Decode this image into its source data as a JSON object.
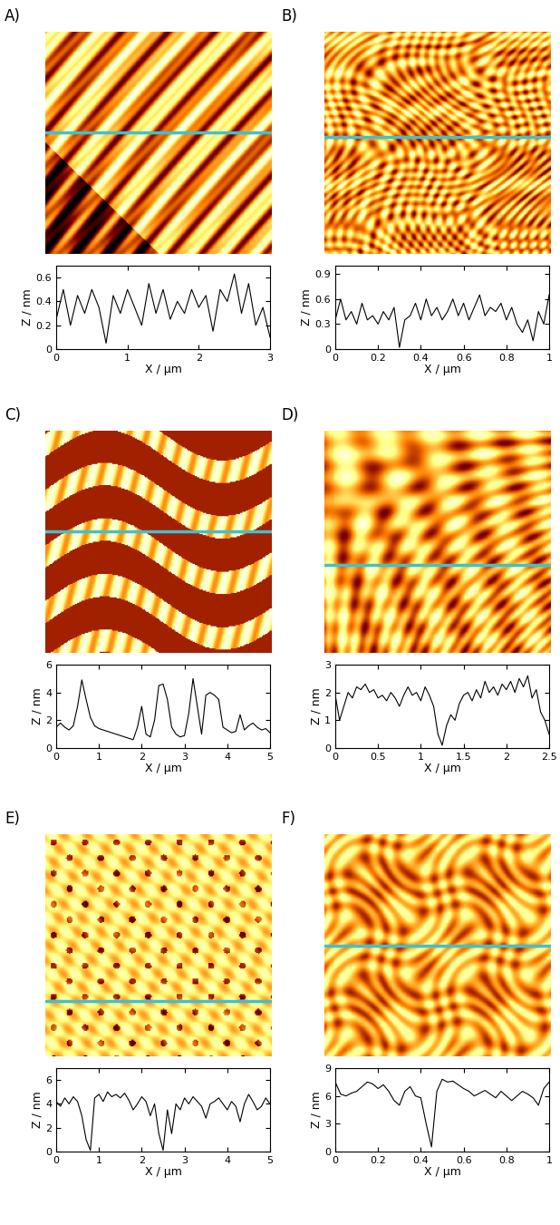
{
  "chart_data": [
    {
      "type": "line",
      "title": "A)",
      "x_label": "X / μm",
      "y_label": "Z / nm",
      "color": "#000000",
      "x": [
        0,
        0.1,
        0.2,
        0.3,
        0.4,
        0.5,
        0.6,
        0.7,
        0.8,
        0.9,
        1.0,
        1.1,
        1.2,
        1.3,
        1.4,
        1.5,
        1.6,
        1.7,
        1.8,
        1.9,
        2.0,
        2.1,
        2.2,
        2.3,
        2.4,
        2.5,
        2.6,
        2.7,
        2.8,
        2.9,
        3.0
      ],
      "values": [
        0.25,
        0.5,
        0.2,
        0.45,
        0.3,
        0.5,
        0.35,
        0.05,
        0.45,
        0.3,
        0.5,
        0.35,
        0.2,
        0.55,
        0.3,
        0.5,
        0.25,
        0.4,
        0.3,
        0.5,
        0.35,
        0.45,
        0.15,
        0.5,
        0.4,
        0.63,
        0.3,
        0.55,
        0.2,
        0.35,
        0.1
      ],
      "xlim": [
        0,
        3
      ],
      "ylim": [
        0,
        0.7
      ],
      "xticks": [
        0,
        1,
        2,
        3
      ],
      "yticks": [
        0,
        0.2,
        0.4,
        0.6
      ]
    },
    {
      "type": "line",
      "title": "B)",
      "x_label": "X / μm",
      "y_label": "Z / nm",
      "color": "#000000",
      "x": [
        0,
        0.025,
        0.05,
        0.075,
        0.1,
        0.125,
        0.15,
        0.175,
        0.2,
        0.225,
        0.25,
        0.275,
        0.3,
        0.325,
        0.35,
        0.375,
        0.4,
        0.425,
        0.45,
        0.475,
        0.5,
        0.525,
        0.55,
        0.575,
        0.6,
        0.625,
        0.65,
        0.675,
        0.7,
        0.725,
        0.75,
        0.775,
        0.8,
        0.825,
        0.85,
        0.875,
        0.9,
        0.925,
        0.95,
        0.975,
        1.0
      ],
      "values": [
        0.35,
        0.6,
        0.35,
        0.45,
        0.3,
        0.55,
        0.35,
        0.4,
        0.3,
        0.45,
        0.35,
        0.5,
        0.02,
        0.35,
        0.4,
        0.55,
        0.35,
        0.6,
        0.4,
        0.5,
        0.35,
        0.45,
        0.6,
        0.4,
        0.55,
        0.35,
        0.5,
        0.65,
        0.4,
        0.5,
        0.45,
        0.55,
        0.35,
        0.5,
        0.3,
        0.2,
        0.35,
        0.1,
        0.45,
        0.3,
        0.65
      ],
      "xlim": [
        0,
        1
      ],
      "ylim": [
        0,
        1.0
      ],
      "xticks": [
        0,
        0.2,
        0.4,
        0.6,
        0.8,
        1
      ],
      "yticks": [
        0,
        0.3,
        0.6,
        0.9
      ]
    },
    {
      "type": "line",
      "title": "C)",
      "x_label": "X / μm",
      "y_label": "Z / nm",
      "color": "#000000",
      "x": [
        0,
        0.1,
        0.2,
        0.3,
        0.4,
        0.5,
        0.6,
        0.7,
        0.8,
        0.9,
        1.0,
        1.1,
        1.2,
        1.3,
        1.4,
        1.5,
        1.6,
        1.7,
        1.8,
        1.9,
        2.0,
        2.1,
        2.2,
        2.3,
        2.4,
        2.5,
        2.6,
        2.7,
        2.8,
        2.9,
        3.0,
        3.1,
        3.2,
        3.3,
        3.4,
        3.5,
        3.6,
        3.7,
        3.8,
        3.9,
        4.0,
        4.1,
        4.2,
        4.3,
        4.4,
        4.5,
        4.6,
        4.7,
        4.8,
        4.9,
        5.0
      ],
      "values": [
        1.5,
        1.8,
        1.5,
        1.3,
        1.6,
        3.0,
        4.9,
        3.5,
        2.2,
        1.6,
        1.4,
        1.3,
        1.2,
        1.1,
        1.0,
        0.9,
        0.8,
        0.7,
        0.6,
        1.5,
        3.0,
        1.0,
        0.8,
        2.0,
        4.5,
        4.6,
        3.5,
        1.5,
        1.0,
        0.8,
        0.9,
        2.5,
        5.0,
        3.0,
        1.0,
        3.8,
        4.0,
        3.8,
        3.5,
        1.5,
        1.3,
        1.1,
        1.2,
        2.4,
        1.3,
        1.6,
        1.8,
        1.5,
        1.3,
        1.4,
        1.1
      ],
      "xlim": [
        0,
        5
      ],
      "ylim": [
        0,
        6
      ],
      "xticks": [
        0,
        1,
        2,
        3,
        4,
        5
      ],
      "yticks": [
        0,
        2,
        4,
        6
      ]
    },
    {
      "type": "line",
      "title": "D)",
      "x_label": "X / μm",
      "y_label": "Z / nm",
      "color": "#000000",
      "x": [
        0,
        0.05,
        0.1,
        0.15,
        0.2,
        0.25,
        0.3,
        0.35,
        0.4,
        0.45,
        0.5,
        0.55,
        0.6,
        0.65,
        0.7,
        0.75,
        0.8,
        0.85,
        0.9,
        0.95,
        1.0,
        1.05,
        1.1,
        1.15,
        1.2,
        1.25,
        1.3,
        1.35,
        1.4,
        1.45,
        1.5,
        1.55,
        1.6,
        1.65,
        1.7,
        1.75,
        1.8,
        1.85,
        1.9,
        1.95,
        2.0,
        2.05,
        2.1,
        2.15,
        2.2,
        2.25,
        2.3,
        2.35,
        2.4,
        2.45,
        2.5
      ],
      "values": [
        1.9,
        1.0,
        1.5,
        2.0,
        1.8,
        2.2,
        2.1,
        2.3,
        2.0,
        2.1,
        1.8,
        1.9,
        1.7,
        2.0,
        1.8,
        1.5,
        1.9,
        2.2,
        1.9,
        2.0,
        1.7,
        2.2,
        1.9,
        1.5,
        0.5,
        0.1,
        0.8,
        1.2,
        1.0,
        1.6,
        1.9,
        2.0,
        1.7,
        2.1,
        1.8,
        2.4,
        2.0,
        2.2,
        1.9,
        2.3,
        2.1,
        2.4,
        2.0,
        2.5,
        2.2,
        2.6,
        1.8,
        2.1,
        1.3,
        1.0,
        0.5
      ],
      "xlim": [
        0,
        2.5
      ],
      "ylim": [
        0,
        3
      ],
      "xticks": [
        0,
        0.5,
        1,
        1.5,
        2,
        2.5
      ],
      "yticks": [
        0,
        1,
        2,
        3
      ]
    },
    {
      "type": "line",
      "title": "E)",
      "x_label": "X / μm",
      "y_label": "Z / nm",
      "color": "#000000",
      "x": [
        0,
        0.1,
        0.2,
        0.3,
        0.4,
        0.5,
        0.6,
        0.7,
        0.8,
        0.9,
        1.0,
        1.1,
        1.2,
        1.3,
        1.4,
        1.5,
        1.6,
        1.7,
        1.8,
        1.9,
        2.0,
        2.1,
        2.2,
        2.3,
        2.4,
        2.5,
        2.6,
        2.7,
        2.8,
        2.9,
        3.0,
        3.1,
        3.2,
        3.3,
        3.4,
        3.5,
        3.6,
        3.7,
        3.8,
        3.9,
        4.0,
        4.1,
        4.2,
        4.3,
        4.4,
        4.5,
        4.6,
        4.7,
        4.8,
        4.9,
        5.0
      ],
      "values": [
        4.2,
        3.8,
        4.5,
        4.0,
        4.6,
        4.2,
        3.0,
        1.0,
        0.1,
        4.5,
        4.8,
        4.2,
        5.0,
        4.6,
        4.8,
        4.5,
        4.9,
        4.3,
        3.5,
        4.0,
        4.6,
        4.2,
        3.0,
        4.0,
        1.5,
        0.1,
        3.5,
        1.5,
        4.0,
        3.5,
        4.5,
        4.0,
        4.6,
        4.2,
        3.8,
        2.8,
        4.0,
        4.2,
        4.5,
        4.0,
        3.5,
        4.2,
        3.8,
        2.5,
        4.0,
        4.8,
        4.2,
        3.5,
        3.8,
        4.5,
        4.0
      ],
      "xlim": [
        0,
        5
      ],
      "ylim": [
        0,
        7
      ],
      "xticks": [
        0,
        1,
        2,
        3,
        4,
        5
      ],
      "yticks": [
        0,
        2,
        4,
        6
      ]
    },
    {
      "type": "line",
      "title": "F)",
      "x_label": "X / μm",
      "y_label": "Z / nm",
      "color": "#000000",
      "x": [
        0,
        0.025,
        0.05,
        0.075,
        0.1,
        0.125,
        0.15,
        0.175,
        0.2,
        0.225,
        0.25,
        0.275,
        0.3,
        0.325,
        0.35,
        0.375,
        0.4,
        0.425,
        0.45,
        0.475,
        0.5,
        0.525,
        0.55,
        0.575,
        0.6,
        0.625,
        0.65,
        0.675,
        0.7,
        0.725,
        0.75,
        0.775,
        0.8,
        0.825,
        0.85,
        0.875,
        0.9,
        0.925,
        0.95,
        0.975,
        1.0
      ],
      "values": [
        7.5,
        6.2,
        6.0,
        6.3,
        6.5,
        7.0,
        7.5,
        7.3,
        6.8,
        7.2,
        6.5,
        5.5,
        5.0,
        6.5,
        7.0,
        6.0,
        5.8,
        3.0,
        0.5,
        6.5,
        7.8,
        7.5,
        7.6,
        7.2,
        6.8,
        6.5,
        6.0,
        6.3,
        6.6,
        6.2,
        5.8,
        6.5,
        6.0,
        5.5,
        6.0,
        6.5,
        6.2,
        5.8,
        5.0,
        6.8,
        7.5
      ],
      "xlim": [
        0,
        1
      ],
      "ylim": [
        0,
        9
      ],
      "xticks": [
        0,
        0.2,
        0.4,
        0.6,
        0.8,
        1
      ],
      "yticks": [
        0,
        3,
        6,
        9
      ]
    }
  ]
}
